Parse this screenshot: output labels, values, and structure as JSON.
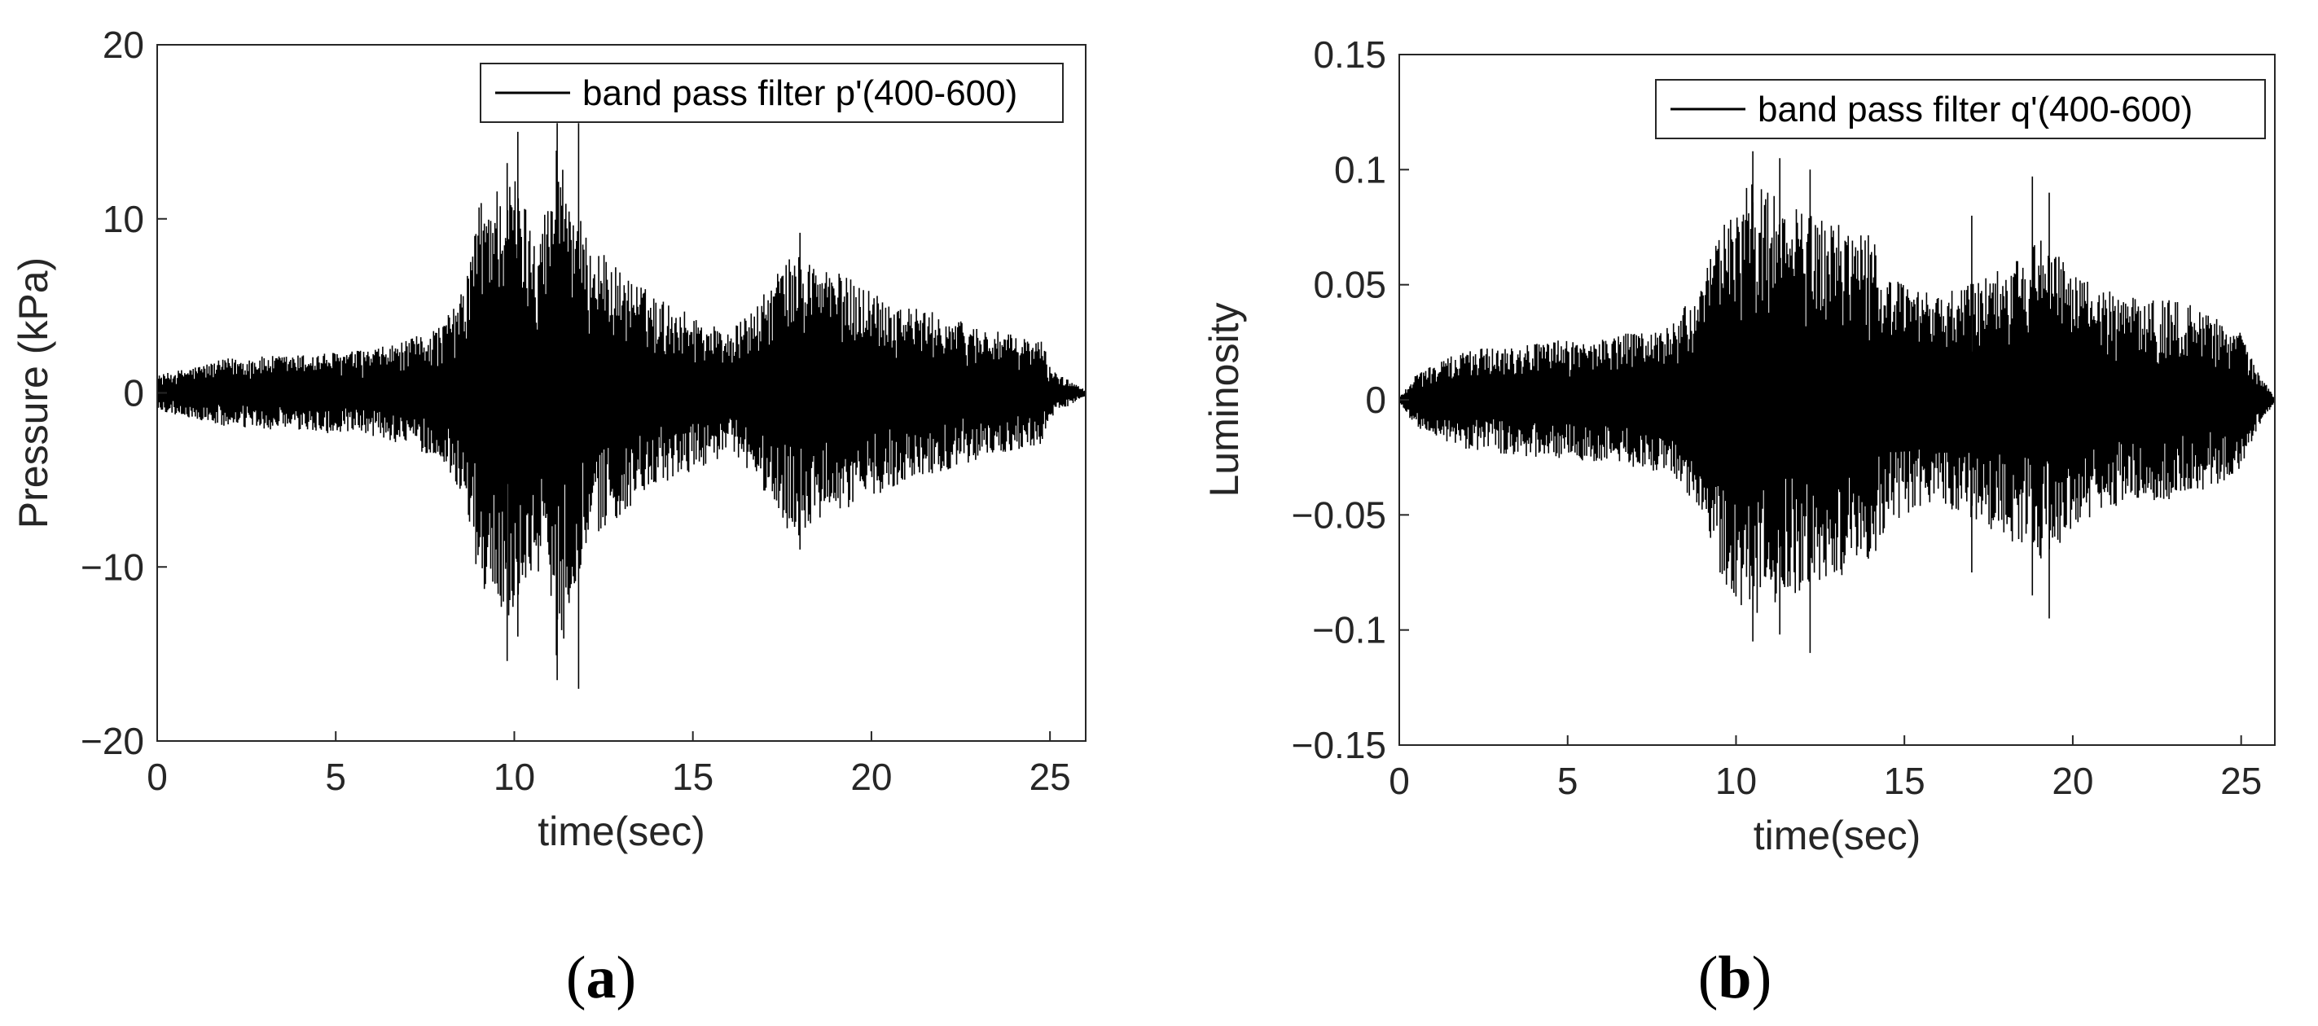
{
  "chart_data": [
    {
      "type": "line",
      "panel_label": "a",
      "xlabel": "time(sec)",
      "ylabel": "Pressure (kPa)",
      "xlim": [
        0,
        26
      ],
      "ylim": [
        -20,
        20
      ],
      "xticks": [
        0,
        5,
        10,
        15,
        20,
        25
      ],
      "yticks": [
        -20,
        -10,
        0,
        10,
        20
      ],
      "xtick_labels": [
        "0",
        "5",
        "10",
        "15",
        "20",
        "25"
      ],
      "ytick_labels": [
        "−20",
        "−10",
        "0",
        "10",
        "20"
      ],
      "legend_position": "top-right",
      "series": [
        {
          "name": "band pass filter p'(400-600)",
          "color": "#000000",
          "envelope": {
            "t": [
              0,
              2,
              4,
              6,
              7,
              8,
              8.6,
              9,
              9.5,
              10,
              10.5,
              11,
              11.2,
              11.7,
              12,
              13,
              14,
              15,
              16,
              16.8,
              17.5,
              18,
              18.5,
              19,
              20,
              21,
              22,
              23,
              24,
              24.8,
              25,
              25.3,
              26
            ],
            "upper": [
              1,
              2,
              2.2,
              2.5,
              3,
              4,
              6,
              11,
              12,
              12.5,
              10,
              11,
              15,
              11,
              9,
              7,
              5.5,
              4.5,
              3.5,
              5,
              7.5,
              8,
              7.5,
              7,
              6,
              5,
              4.5,
              3.8,
              3.3,
              3,
              1.5,
              1,
              0.2
            ],
            "lower": [
              -1,
              -2,
              -2.2,
              -2.5,
              -3,
              -4,
              -6,
              -11,
              -12.5,
              -13,
              -10,
              -11,
              -16,
              -11,
              -9,
              -7,
              -5.5,
              -4.5,
              -3.5,
              -5,
              -7.5,
              -8.5,
              -7.5,
              -7,
              -6,
              -5,
              -4.5,
              -3.8,
              -3.3,
              -3,
              -1.5,
              -1,
              -0.2
            ]
          },
          "spikes": [
            {
              "t": 9.8,
              "min": -15.4,
              "max": 13.2
            },
            {
              "t": 10.1,
              "min": -14,
              "max": 15
            },
            {
              "t": 11.2,
              "min": -16.5,
              "max": 15.5
            },
            {
              "t": 11.8,
              "min": -17,
              "max": 15.5
            },
            {
              "t": 18,
              "min": -9,
              "max": 9.2
            }
          ]
        }
      ]
    },
    {
      "type": "line",
      "panel_label": "b",
      "xlabel": "time(sec)",
      "ylabel": "Luminosity",
      "xlim": [
        0,
        26
      ],
      "ylim": [
        -0.15,
        0.15
      ],
      "xticks": [
        0,
        5,
        10,
        15,
        20,
        25
      ],
      "yticks": [
        -0.15,
        -0.1,
        -0.05,
        0,
        0.05,
        0.1,
        0.15
      ],
      "xtick_labels": [
        "0",
        "5",
        "10",
        "15",
        "20",
        "25"
      ],
      "ytick_labels": [
        "−0.15",
        "−0.1",
        "−0.05",
        "0",
        "0.05",
        "0.1",
        "0.15"
      ],
      "legend_position": "top-right",
      "series": [
        {
          "name": "band pass filter q'(400-600)",
          "color": "#000000",
          "envelope": {
            "t": [
              0,
              0.5,
              2,
              4,
              6,
              8,
              9,
              9.5,
              10,
              10.5,
              11,
              12,
              13,
              14,
              14.5,
              15,
              16,
              17,
              18,
              19,
              19.5,
              20,
              21,
              22,
              23,
              24,
              25,
              25.5,
              26
            ],
            "upper": [
              0.001,
              0.012,
              0.022,
              0.025,
              0.027,
              0.032,
              0.05,
              0.075,
              0.088,
              0.095,
              0.09,
              0.082,
              0.077,
              0.072,
              0.055,
              0.05,
              0.045,
              0.052,
              0.06,
              0.07,
              0.065,
              0.055,
              0.048,
              0.045,
              0.043,
              0.04,
              0.03,
              0.012,
              0.001
            ],
            "lower": [
              -0.001,
              -0.012,
              -0.022,
              -0.025,
              -0.027,
              -0.032,
              -0.05,
              -0.075,
              -0.088,
              -0.095,
              -0.09,
              -0.082,
              -0.077,
              -0.072,
              -0.055,
              -0.05,
              -0.045,
              -0.052,
              -0.06,
              -0.07,
              -0.065,
              -0.055,
              -0.048,
              -0.045,
              -0.043,
              -0.04,
              -0.03,
              -0.012,
              -0.001
            ]
          },
          "spikes": [
            {
              "t": 10.5,
              "min": -0.105,
              "max": 0.108
            },
            {
              "t": 11.3,
              "min": -0.102,
              "max": 0.105
            },
            {
              "t": 12.2,
              "min": -0.11,
              "max": 0.1
            },
            {
              "t": 17,
              "min": -0.075,
              "max": 0.08
            },
            {
              "t": 18.8,
              "min": -0.085,
              "max": 0.097
            },
            {
              "t": 19.3,
              "min": -0.095,
              "max": 0.09
            }
          ]
        }
      ]
    }
  ]
}
